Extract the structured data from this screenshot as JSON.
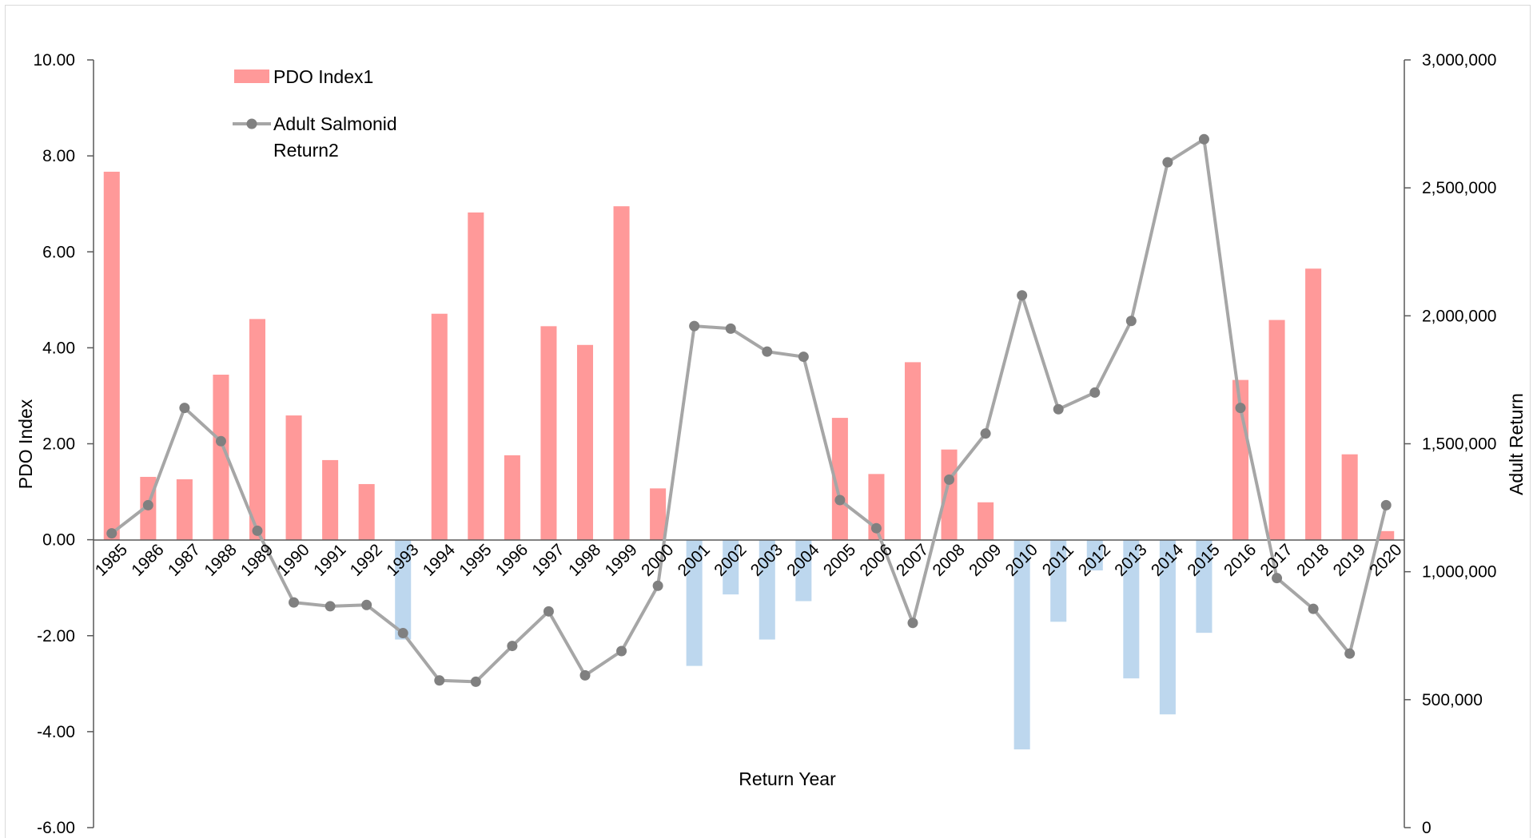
{
  "chart_data": {
    "type": "bar",
    "categories": [
      "1985",
      "1986",
      "1987",
      "1988",
      "1989",
      "1990",
      "1991",
      "1992",
      "1993",
      "1994",
      "1995",
      "1996",
      "1997",
      "1998",
      "1999",
      "2000",
      "2001",
      "2002",
      "2003",
      "2004",
      "2005",
      "2006",
      "2007",
      "2008",
      "2009",
      "2010",
      "2011",
      "2012",
      "2013",
      "2014",
      "2015",
      "2016",
      "2017",
      "2018",
      "2019",
      "2020"
    ],
    "series": [
      {
        "name": "PDO Index1",
        "type": "bar",
        "axis": "left",
        "positive_color": "#ff9999",
        "negative_color": "#bdd7ee",
        "values": [
          7.67,
          1.31,
          1.26,
          3.44,
          4.6,
          2.59,
          1.66,
          1.16,
          -2.08,
          4.71,
          6.82,
          1.76,
          4.45,
          4.06,
          6.95,
          1.07,
          -2.63,
          -1.14,
          -2.08,
          -1.28,
          2.54,
          1.37,
          3.7,
          1.88,
          0.78,
          -4.37,
          -1.71,
          -0.64,
          -2.89,
          -3.64,
          -1.94,
          3.33,
          4.58,
          5.65,
          1.78,
          0.18
        ]
      },
      {
        "name": "Adult Salmonid Return2",
        "type": "line",
        "axis": "right",
        "color": "#a6a6a6",
        "values": [
          1150000,
          1260000,
          1640000,
          1510000,
          1160000,
          880000,
          865000,
          870000,
          760000,
          575000,
          570000,
          710000,
          845000,
          595000,
          690000,
          945000,
          1960000,
          1950000,
          1860000,
          1840000,
          1280000,
          1170000,
          800000,
          1360000,
          1540000,
          2080000,
          1635000,
          1700000,
          1980000,
          2600000,
          2690000,
          1640000,
          975000,
          855000,
          680000,
          1260000
        ]
      }
    ],
    "title": "",
    "xlabel": "Return Year",
    "ylabel": "PDO Index",
    "y2label": "Adult Return",
    "ylim": [
      -6,
      10
    ],
    "y2lim": [
      0,
      3000000
    ],
    "yticks": [
      "10.00",
      "8.00",
      "6.00",
      "4.00",
      "2.00",
      "0.00",
      "-2.00",
      "-4.00",
      "-6.00"
    ],
    "y2ticks": [
      "3,000,000",
      "2,500,000",
      "2,000,000",
      "1,500,000",
      "1,000,000",
      "500,000",
      "0"
    ],
    "legend": {
      "placement": "top-left",
      "entries": [
        {
          "label_lines": [
            "PDO Index1"
          ]
        },
        {
          "label_lines": [
            "Adult Salmonid",
            "Return2"
          ]
        }
      ]
    },
    "grid": false
  }
}
